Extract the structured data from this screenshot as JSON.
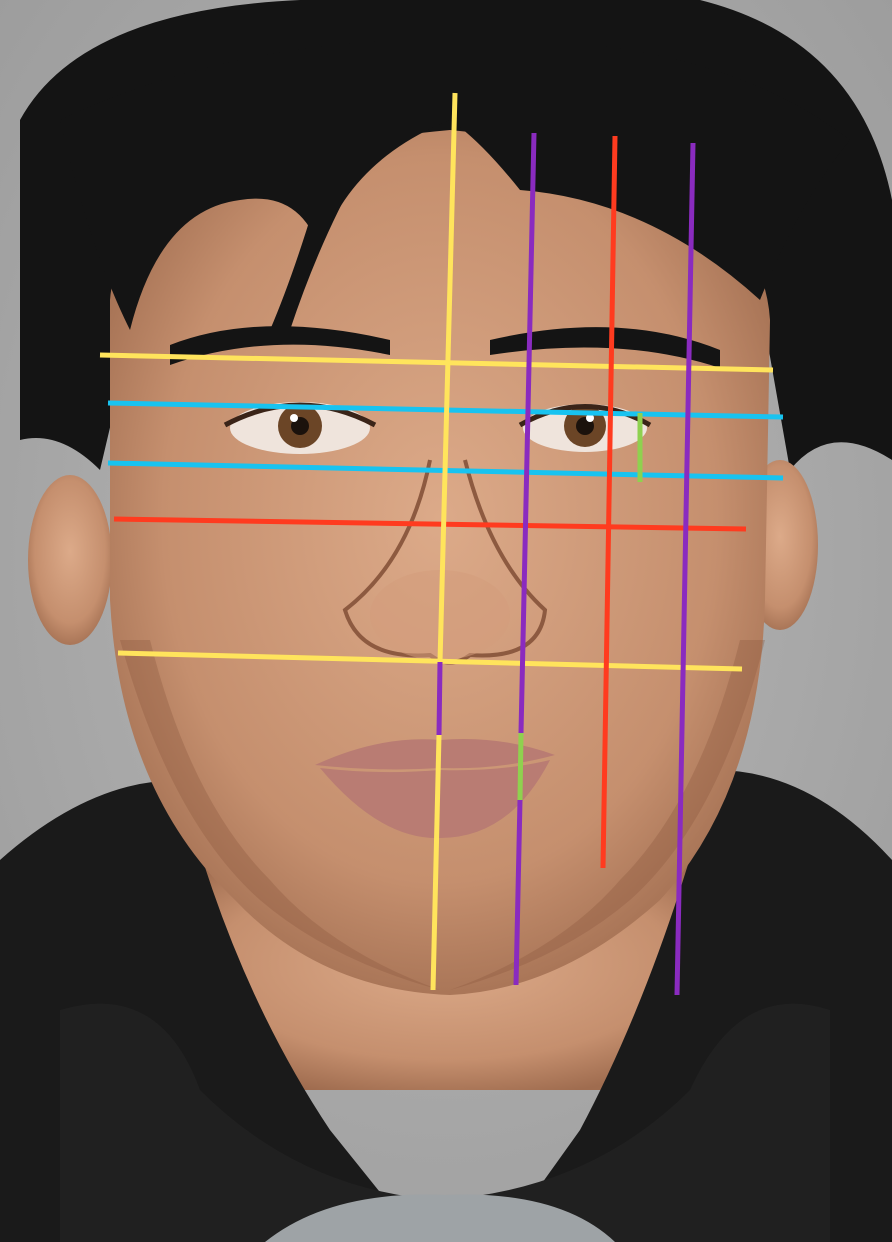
{
  "image": {
    "subject": "portrait-photo",
    "colors": {
      "background": "#9c9c9c",
      "background_light": "#b8b8b8",
      "hair": "#141414",
      "skin": "#c58f6e",
      "skin_shadow": "#9f6c4f",
      "skin_highlight": "#dcaa89",
      "lips": "#b97c73",
      "jacket": "#1a1a1a",
      "sweater": "#202020",
      "tshirt": "#9ea3a6",
      "iris": "#6b4526"
    }
  },
  "overlay": {
    "colors": {
      "yellow": "#ffe45c",
      "cyan": "#18c3f0",
      "red": "#ff3b1f",
      "purple": "#8a2bbf",
      "green": "#8fd14f"
    }
  }
}
